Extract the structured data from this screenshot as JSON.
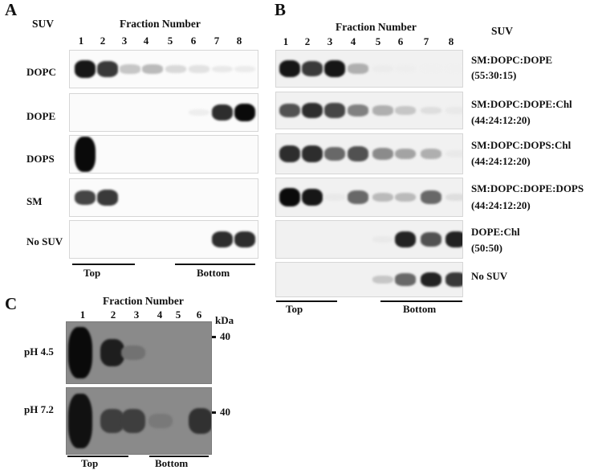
{
  "panels": {
    "A": {
      "letter": "A",
      "suv_header": "SUV",
      "fraction_header": "Fraction Number",
      "fractions": [
        "1",
        "2",
        "3",
        "4",
        "5",
        "6",
        "7",
        "8"
      ],
      "rows": [
        {
          "label": "DOPC",
          "intensities": [
            0.95,
            0.8,
            0.2,
            0.25,
            0.12,
            0.08,
            0.05,
            0.04
          ]
        },
        {
          "label": "DOPE",
          "intensities": [
            0,
            0,
            0,
            0,
            0,
            0.03,
            0.85,
            1.0
          ]
        },
        {
          "label": "DOPS",
          "intensities": [
            1.0,
            0,
            0,
            0,
            0,
            0,
            0,
            0
          ]
        },
        {
          "label": "SM",
          "intensities": [
            0.75,
            0.8,
            0,
            0,
            0,
            0,
            0,
            0
          ]
        },
        {
          "label": "No SUV",
          "intensities": [
            0,
            0,
            0,
            0,
            0,
            0,
            0.85,
            0.85
          ]
        }
      ],
      "top_label": "Top",
      "bottom_label": "Bottom"
    },
    "B": {
      "letter": "B",
      "fraction_header": "Fraction Number",
      "suv_header": "SUV",
      "fractions": [
        "1",
        "2",
        "3",
        "4",
        "5",
        "6",
        "7",
        "8"
      ],
      "rows": [
        {
          "label_line1": "SM:DOPC:DOPE",
          "label_line2": "(55:30:15)",
          "intensities": [
            0.95,
            0.8,
            0.95,
            0.3,
            0.04,
            0.03,
            0.02,
            0.02
          ]
        },
        {
          "label_line1": "SM:DOPC:DOPE:Chl",
          "label_line2": "(44:24:12:20)",
          "intensities": [
            0.7,
            0.85,
            0.75,
            0.5,
            0.3,
            0.2,
            0.1,
            0.05
          ]
        },
        {
          "label_line1": "SM:DOPC:DOPS:Chl",
          "label_line2": "(44:24:12:20)",
          "intensities": [
            0.85,
            0.85,
            0.6,
            0.7,
            0.45,
            0.35,
            0.3,
            0.05
          ]
        },
        {
          "label_line1": "SM:DOPC:DOPE:DOPS",
          "label_line2": "(44:24:12:20)",
          "intensities": [
            1.0,
            0.95,
            0.05,
            0.6,
            0.25,
            0.25,
            0.6,
            0.1
          ]
        },
        {
          "label_line1": "DOPE:Chl",
          "label_line2": "(50:50)",
          "intensities": [
            0,
            0,
            0,
            0,
            0.05,
            0.9,
            0.7,
            0.9
          ]
        },
        {
          "label_line1": "No SUV",
          "label_line2": "",
          "intensities": [
            0,
            0,
            0,
            0,
            0.2,
            0.6,
            0.9,
            0.8
          ]
        }
      ],
      "top_label": "Top",
      "bottom_label": "Bottom"
    },
    "C": {
      "letter": "C",
      "fraction_header": "Fraction Number",
      "fractions": [
        "1",
        "2",
        "3",
        "4",
        "5",
        "6"
      ],
      "unit_label": "kDa",
      "rows": [
        {
          "label": "pH 4.5",
          "marker": "40",
          "intensities": [
            1.0,
            0.85,
            0.2,
            0,
            0,
            0
          ]
        },
        {
          "label": "pH 7.2",
          "marker": "40",
          "intensities": [
            0.95,
            0.6,
            0.6,
            0.15,
            0,
            0.7
          ]
        }
      ],
      "top_label": "Top",
      "bottom_label": "Bottom"
    }
  }
}
